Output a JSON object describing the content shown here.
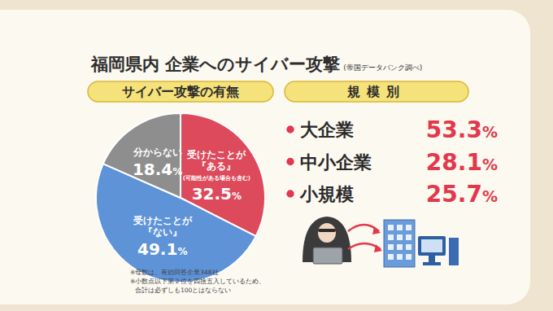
{
  "title": "福岡県内 企業へのサイバー攻撃",
  "source": "(帝国データバンク調べ)",
  "chart_data": [
    {
      "type": "pie",
      "title": "サイバー攻撃の有無",
      "categories": [
        "受けたことが『ある』",
        "受けたことが『ない』",
        "分からない"
      ],
      "values": [
        32.5,
        49.1,
        18.4
      ],
      "value_labels": [
        "32.5%",
        "49.1%",
        "18.4%"
      ],
      "colors": [
        "#dd4a5c",
        "#5e93d8",
        "#8e8e8e"
      ],
      "data_labels": true,
      "annotations": [
        {
          "category": "受けたことが『ある』",
          "text": "(可能性がある場合も含む)"
        }
      ]
    },
    {
      "type": "list",
      "title": "規模別",
      "categories": [
        "大企業",
        "中小企業",
        "小規模"
      ],
      "values": [
        53.3,
        28.1,
        25.7
      ],
      "value_labels": [
        "53.3%",
        "28.1%",
        "25.7%"
      ],
      "color": "#e3384b",
      "data_labels": true
    }
  ],
  "notes": [
    "※母数は、有効回答企業348社",
    "※小数点以下第２位を四捨五入しているため、",
    "合計は必ずしも100とはならない"
  ]
}
